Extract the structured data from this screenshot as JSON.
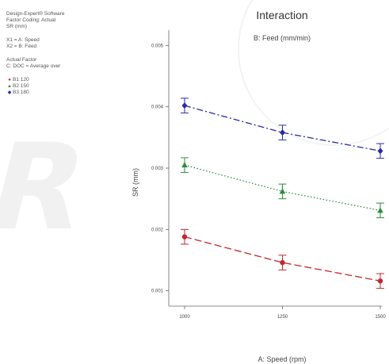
{
  "info": {
    "software": "Design-Expert® Software",
    "factor_coding": "Factor Coding: Actual",
    "response": "SR (mm)",
    "x1": "X1 = A: Speed",
    "x2": "X2 = B: Feed",
    "actual_factor_heading": "Actual Factor",
    "actual_factor_value": "C: DOC = Average over"
  },
  "colors": {
    "b1": "#c0282d",
    "b2": "#2e8b3a",
    "b3": "#2a2aa8",
    "axis": "#666666",
    "text": "#333333"
  },
  "chart_data": {
    "type": "line",
    "title": "Interaction",
    "subtitle": "B: Feed (mm/min)",
    "xlabel": "A: Speed (rpm)",
    "ylabel": "SR (mm)",
    "x": [
      1000,
      1250,
      1500
    ],
    "x_ticks": [
      "1000",
      "1250",
      "1500"
    ],
    "xlim": [
      1000,
      1500
    ],
    "y_ticks": [
      "0.001",
      "0.002",
      "0.003",
      "0.004",
      "0.005"
    ],
    "y_tick_values": [
      0.001,
      0.002,
      0.003,
      0.004,
      0.005
    ],
    "ylim": [
      0.00075,
      0.00525
    ],
    "grid": false,
    "legend_position": "left",
    "error_bar_halfwidth": 0.00012,
    "series": [
      {
        "name": "B1 120",
        "marker": "circle",
        "dash": "long-dash",
        "color": "#c0282d",
        "values": [
          0.00188,
          0.00146,
          0.00116
        ]
      },
      {
        "name": "B2 150",
        "marker": "triangle",
        "dash": "dotted",
        "color": "#2e8b3a",
        "values": [
          0.00305,
          0.00262,
          0.00231
        ]
      },
      {
        "name": "B3 180",
        "marker": "diamond",
        "dash": "dash-dot",
        "color": "#2a2aa8",
        "values": [
          0.00402,
          0.00358,
          0.00328
        ]
      }
    ]
  }
}
